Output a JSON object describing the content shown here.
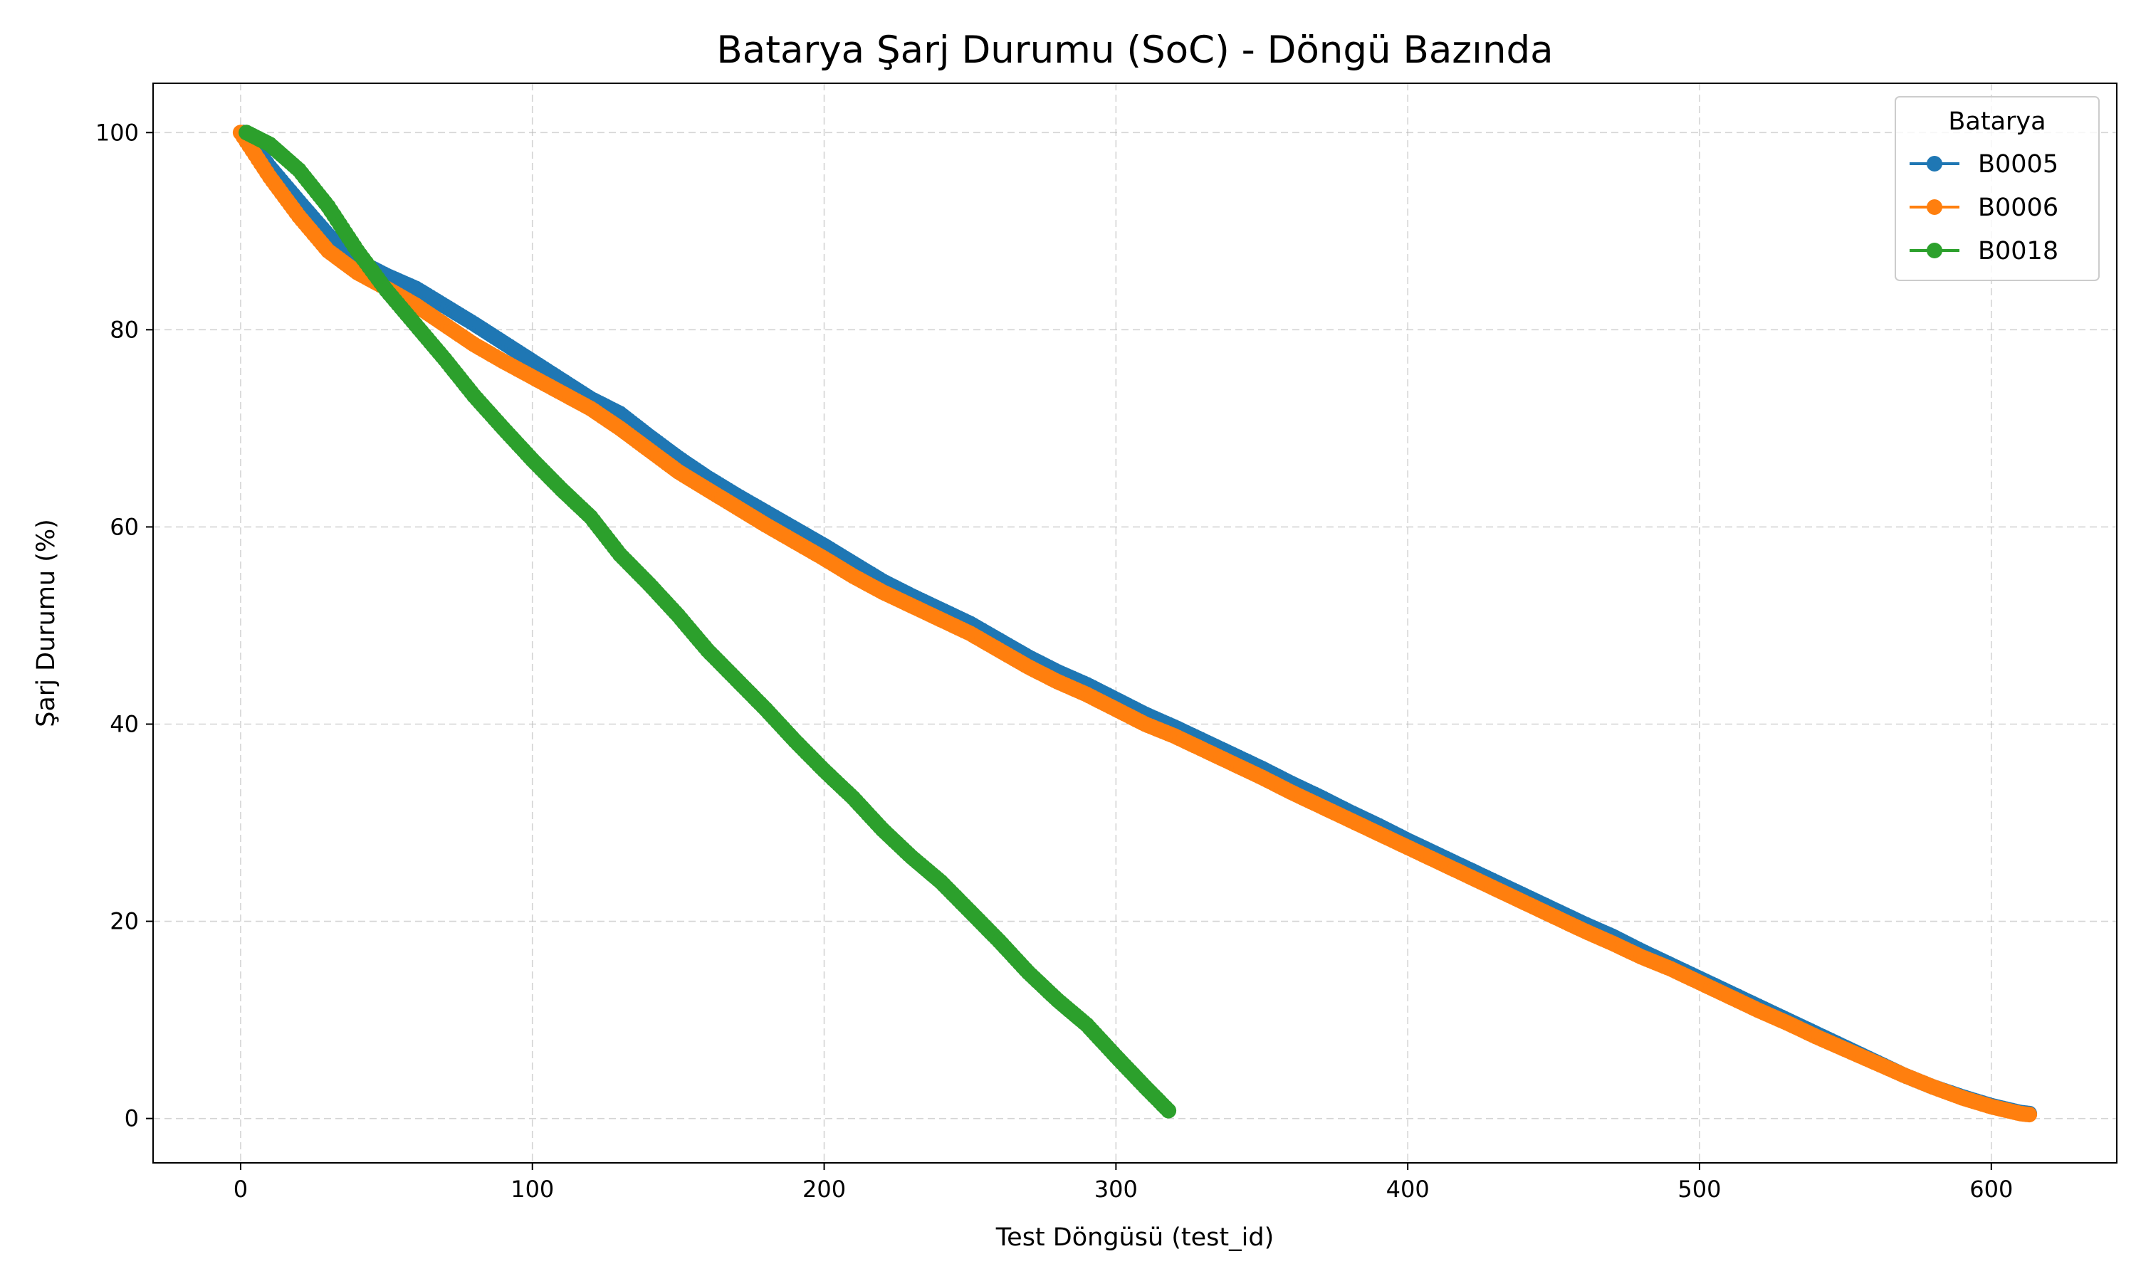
{
  "chart_data": {
    "type": "line",
    "title": "Batarya Şarj Durumu (SoC) - Döngü Bazında",
    "xlabel": "Test Döngüsü (test_id)",
    "ylabel": "Şarj Durumu (%)",
    "xlim": [
      -30,
      643
    ],
    "ylim": [
      -4.5,
      105
    ],
    "xticks": [
      0,
      100,
      200,
      300,
      400,
      500,
      600
    ],
    "yticks": [
      0,
      20,
      40,
      60,
      80,
      100
    ],
    "grid": true,
    "legend": {
      "title": "Batarya",
      "position": "top-right"
    },
    "series": [
      {
        "name": "B0005",
        "color": "#1f77b4",
        "points": [
          [
            1,
            100
          ],
          [
            10,
            96.5
          ],
          [
            20,
            93
          ],
          [
            30,
            89.6
          ],
          [
            40,
            87
          ],
          [
            50,
            85.5
          ],
          [
            60,
            84.2
          ],
          [
            70,
            82.4
          ],
          [
            80,
            80.6
          ],
          [
            90,
            78.7
          ],
          [
            100,
            76.8
          ],
          [
            110,
            74.9
          ],
          [
            120,
            73
          ],
          [
            130,
            71.5
          ],
          [
            140,
            69.2
          ],
          [
            150,
            67
          ],
          [
            160,
            65
          ],
          [
            170,
            63.2
          ],
          [
            180,
            61.5
          ],
          [
            190,
            59.8
          ],
          [
            200,
            58.1
          ],
          [
            210,
            56.3
          ],
          [
            220,
            54.5
          ],
          [
            230,
            53
          ],
          [
            240,
            51.6
          ],
          [
            250,
            50.2
          ],
          [
            260,
            48.5
          ],
          [
            270,
            46.8
          ],
          [
            280,
            45.3
          ],
          [
            290,
            44
          ],
          [
            300,
            42.5
          ],
          [
            310,
            41
          ],
          [
            320,
            39.7
          ],
          [
            330,
            38.3
          ],
          [
            340,
            36.9
          ],
          [
            350,
            35.5
          ],
          [
            360,
            34
          ],
          [
            370,
            32.6
          ],
          [
            380,
            31.1
          ],
          [
            390,
            29.7
          ],
          [
            400,
            28.2
          ],
          [
            410,
            26.8
          ],
          [
            420,
            25.4
          ],
          [
            430,
            24
          ],
          [
            440,
            22.6
          ],
          [
            450,
            21.2
          ],
          [
            460,
            19.8
          ],
          [
            470,
            18.5
          ],
          [
            480,
            17
          ],
          [
            490,
            15.6
          ],
          [
            500,
            14.2
          ],
          [
            510,
            12.8
          ],
          [
            520,
            11.4
          ],
          [
            530,
            10
          ],
          [
            540,
            8.6
          ],
          [
            550,
            7.2
          ],
          [
            560,
            5.8
          ],
          [
            570,
            4.4
          ],
          [
            580,
            3.2
          ],
          [
            590,
            2.2
          ],
          [
            600,
            1.3
          ],
          [
            610,
            0.6
          ],
          [
            613,
            0.5
          ]
        ]
      },
      {
        "name": "B0006",
        "color": "#ff7f0e",
        "points": [
          [
            0,
            100
          ],
          [
            10,
            95.5
          ],
          [
            20,
            91.5
          ],
          [
            30,
            88
          ],
          [
            40,
            85.8
          ],
          [
            50,
            84.2
          ],
          [
            60,
            82.5
          ],
          [
            70,
            80.5
          ],
          [
            80,
            78.5
          ],
          [
            90,
            76.8
          ],
          [
            100,
            75.2
          ],
          [
            110,
            73.6
          ],
          [
            120,
            72
          ],
          [
            130,
            70
          ],
          [
            140,
            67.8
          ],
          [
            150,
            65.6
          ],
          [
            160,
            63.8
          ],
          [
            170,
            62
          ],
          [
            180,
            60.2
          ],
          [
            190,
            58.5
          ],
          [
            200,
            56.8
          ],
          [
            210,
            55
          ],
          [
            220,
            53.4
          ],
          [
            230,
            52
          ],
          [
            240,
            50.6
          ],
          [
            250,
            49.2
          ],
          [
            260,
            47.5
          ],
          [
            270,
            45.8
          ],
          [
            280,
            44.3
          ],
          [
            290,
            43
          ],
          [
            300,
            41.5
          ],
          [
            310,
            40
          ],
          [
            320,
            38.8
          ],
          [
            330,
            37.4
          ],
          [
            340,
            36
          ],
          [
            350,
            34.6
          ],
          [
            360,
            33.1
          ],
          [
            370,
            31.7
          ],
          [
            380,
            30.3
          ],
          [
            390,
            28.9
          ],
          [
            400,
            27.5
          ],
          [
            410,
            26.1
          ],
          [
            420,
            24.7
          ],
          [
            430,
            23.3
          ],
          [
            440,
            21.9
          ],
          [
            450,
            20.5
          ],
          [
            460,
            19.1
          ],
          [
            470,
            17.8
          ],
          [
            480,
            16.4
          ],
          [
            490,
            15.2
          ],
          [
            500,
            13.8
          ],
          [
            510,
            12.4
          ],
          [
            520,
            11
          ],
          [
            530,
            9.7
          ],
          [
            540,
            8.3
          ],
          [
            550,
            7
          ],
          [
            560,
            5.7
          ],
          [
            570,
            4.4
          ],
          [
            580,
            3.2
          ],
          [
            590,
            2.1
          ],
          [
            600,
            1.2
          ],
          [
            610,
            0.5
          ],
          [
            613,
            0.4
          ]
        ]
      },
      {
        "name": "B0018",
        "color": "#2ca02c",
        "points": [
          [
            2,
            100
          ],
          [
            10,
            98.8
          ],
          [
            20,
            96.2
          ],
          [
            30,
            92.5
          ],
          [
            40,
            88
          ],
          [
            50,
            84
          ],
          [
            60,
            80.5
          ],
          [
            70,
            77
          ],
          [
            80,
            73.3
          ],
          [
            90,
            70
          ],
          [
            100,
            66.8
          ],
          [
            110,
            63.8
          ],
          [
            120,
            61
          ],
          [
            130,
            57.2
          ],
          [
            140,
            54.2
          ],
          [
            150,
            51
          ],
          [
            160,
            47.5
          ],
          [
            170,
            44.5
          ],
          [
            180,
            41.5
          ],
          [
            190,
            38.3
          ],
          [
            200,
            35.3
          ],
          [
            210,
            32.5
          ],
          [
            220,
            29.3
          ],
          [
            230,
            26.5
          ],
          [
            240,
            24
          ],
          [
            250,
            21
          ],
          [
            260,
            18
          ],
          [
            270,
            14.8
          ],
          [
            280,
            12
          ],
          [
            290,
            9.5
          ],
          [
            300,
            6.3
          ],
          [
            310,
            3.2
          ],
          [
            318,
            0.8
          ]
        ]
      }
    ]
  }
}
